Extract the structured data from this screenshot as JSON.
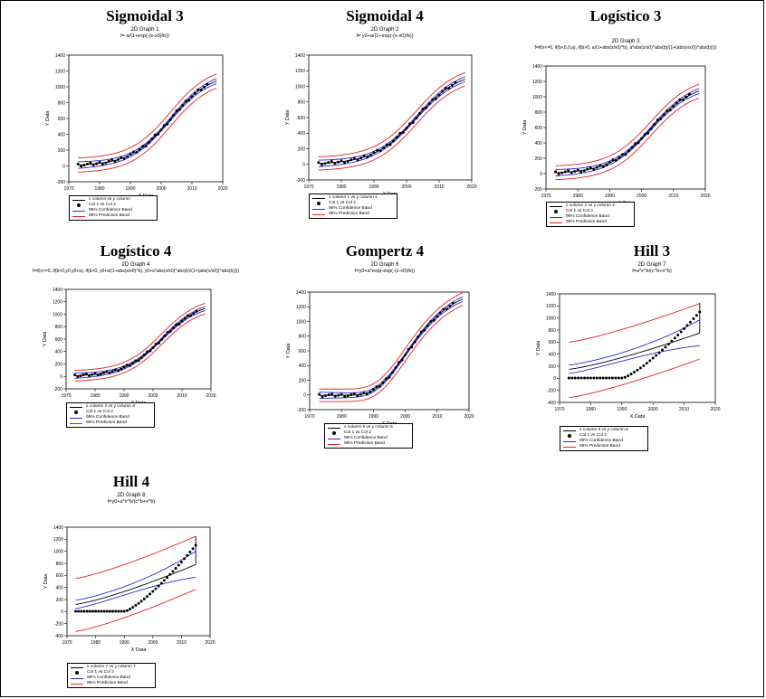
{
  "colors": {
    "fit": "#000000",
    "data": "#000000",
    "confidence": "#2b2bd8",
    "prediction": "#e82020"
  },
  "chart_data": [
    {
      "type": "scatter",
      "title": "Sigmoidal 3",
      "subtitle": "2D Graph 1",
      "equation": "f= a/(1+exp(-(x-x0)/b))",
      "xlabel": "X Data",
      "ylabel": "Y Data",
      "xlim": [
        1970,
        2020
      ],
      "ylim": [
        -200,
        1400
      ],
      "xticks": [
        "1970",
        "1980",
        "1990",
        "2000",
        "2010",
        "2020"
      ],
      "yticks": [
        "-200",
        "0",
        "200",
        "400",
        "600",
        "800",
        "1000",
        "1200",
        "1400"
      ],
      "model": {
        "kind": "sigmoid",
        "a": 1180,
        "x0": 2003,
        "b": 6.5,
        "fit_end": 2018
      },
      "bands": {
        "conf": 35,
        "pred": 90
      },
      "points": {
        "x_start": 1973,
        "x_end": 2015,
        "step": 1
      },
      "legend": [
        "x column vs y column",
        "Col 1 vs Col 2",
        "95% Confidence Band",
        "95% Prediction Band"
      ]
    },
    {
      "type": "scatter",
      "title": "Sigmoidal 4",
      "subtitle": "2D Graph 2",
      "equation": "f= y0+a/(1+exp(-(x-x0)/b))",
      "xlabel": "X Data",
      "ylabel": "Y Data",
      "xlim": [
        1970,
        2020
      ],
      "ylim": [
        -200,
        1400
      ],
      "xticks": [
        "1970",
        "1980",
        "1990",
        "2000",
        "2010",
        "2020"
      ],
      "yticks": [
        "-200",
        "0",
        "200",
        "400",
        "600",
        "800",
        "1000",
        "1200",
        "1400"
      ],
      "model": {
        "kind": "sigmoid",
        "a": 1200,
        "x0": 2003,
        "b": 6.5,
        "fit_end": 2018
      },
      "bands": {
        "conf": 35,
        "pred": 85
      },
      "points": {
        "x_start": 1973,
        "x_end": 2015,
        "step": 1
      },
      "legend": [
        "x column 1 vs y column 1",
        "Col 1 vs Col 2",
        "95% Confidence Band",
        "95% Prediction Band"
      ]
    },
    {
      "type": "scatter",
      "title": "Logístico 3",
      "subtitle": "2D Graph 3",
      "equation": "f=if(x<=0, if(b<0,0,a), if(b>0, a/(1+abs(x/x0)^b), a*abs(x/x0)^abs(b)/(1+(abs(x/x0))^abs(b))))",
      "xlabel": "X Data",
      "ylabel": "Y Data",
      "xlim": [
        1970,
        2020
      ],
      "ylim": [
        -200,
        1400
      ],
      "xticks": [
        "1970",
        "1980",
        "1990",
        "2000",
        "2010",
        "2020"
      ],
      "yticks": [
        "-200",
        "0",
        "200",
        "400",
        "600",
        "800",
        "1000",
        "1200",
        "1400"
      ],
      "model": {
        "kind": "sigmoid",
        "a": 1180,
        "x0": 2003,
        "b": 6.5,
        "fit_end": 2018
      },
      "bands": {
        "conf": 35,
        "pred": 90
      },
      "points": {
        "x_start": 1973,
        "x_end": 2015,
        "step": 1
      },
      "legend": [
        "x column 2 vs y column 2",
        "Col 1 vs Col 2",
        "95% Confidence Band",
        "95% Prediction Band"
      ]
    },
    {
      "type": "scatter",
      "title": "Logístico 4",
      "subtitle": "2D Graph 4",
      "equation": "f=if(x<=0, if(b<0,y0,y0+a), if(b>0, y0+a/(1+abs(x/x0)^b), y0+a*abs(x/x0)^abs(b)/(1+(abs(x/x0))^abs(b))))",
      "xlabel": "X Data",
      "ylabel": "Y Data",
      "xlim": [
        1970,
        2020
      ],
      "ylim": [
        -200,
        1400
      ],
      "xticks": [
        "1970",
        "1980",
        "1990",
        "2000",
        "2010",
        "2020"
      ],
      "yticks": [
        "-200",
        "0",
        "200",
        "400",
        "600",
        "800",
        "1000",
        "1200",
        "1400"
      ],
      "model": {
        "kind": "sigmoid",
        "a": 1200,
        "x0": 2003,
        "b": 6.5,
        "fit_end": 2018
      },
      "bands": {
        "conf": 35,
        "pred": 85
      },
      "points": {
        "x_start": 1973,
        "x_end": 2015,
        "step": 1
      },
      "legend": [
        "x column 3 vs y column 3",
        "Col 1 vs Col 2",
        "95% Confidence Band",
        "95% Prediction Band"
      ]
    },
    {
      "type": "scatter",
      "title": "Gompertz 4",
      "subtitle": "2D Graph 6",
      "equation": "f=y0+a*exp(-exp(-(x-x0)/b))",
      "xlabel": "X Data",
      "ylabel": "Y Data",
      "xlim": [
        1970,
        2020
      ],
      "ylim": [
        -200,
        1400
      ],
      "xticks": [
        "1970",
        "1980",
        "1990",
        "2000",
        "2010",
        "2020"
      ],
      "yticks": [
        "-200",
        "0",
        "200",
        "400",
        "600",
        "800",
        "1000",
        "1200",
        "1400"
      ],
      "model": {
        "kind": "gompertz",
        "a": 1500,
        "x0": 2000,
        "b": 9,
        "fit_end": 2018
      },
      "bands": {
        "conf": 35,
        "pred": 85
      },
      "points": {
        "x_start": 1973,
        "x_end": 2015,
        "step": 1
      },
      "legend": [
        "x column 5 vs y column 5",
        "Col 1 vs Col 2",
        "95% Confidence Band",
        "95% Prediction Band"
      ]
    },
    {
      "type": "scatter",
      "title": "Hill 3",
      "subtitle": "2D Graph 7",
      "equation": "f=a*x^b/(c^b+x^b)",
      "xlabel": "X Data",
      "ylabel": "Y Data",
      "xlim": [
        1970,
        2020
      ],
      "ylim": [
        -400,
        1400
      ],
      "xticks": [
        "1970",
        "1980",
        "1990",
        "2000",
        "2010",
        "2020"
      ],
      "yticks": [
        "-400",
        "-200",
        "0",
        "200",
        "400",
        "600",
        "800",
        "1000",
        "1200",
        "1400"
      ],
      "model": {
        "kind": "hill",
        "y_start": 150,
        "y_end": 750,
        "fit_end": 2015
      },
      "bands": {
        "conf_lo": 70,
        "conf_hi": 250,
        "pred": 450
      },
      "points": {
        "x_start": 1973,
        "x_end": 2015,
        "step": 1
      },
      "legend": [
        "x column 6 vs y column 6",
        "Col 1 vs Col 2",
        "95% Confidence Band",
        "95% Prediction Band"
      ]
    },
    {
      "type": "scatter",
      "title": "Hill 4",
      "subtitle": "2D Graph 8",
      "equation": "f=y0+a*x^b/(c^b+x^b)",
      "xlabel": "X Data",
      "ylabel": "Y Data",
      "xlim": [
        1970,
        2020
      ],
      "ylim": [
        -400,
        1400
      ],
      "xticks": [
        "1970",
        "1980",
        "1990",
        "2000",
        "2010",
        "2020"
      ],
      "yticks": [
        "-400",
        "-200",
        "0",
        "200",
        "400",
        "600",
        "800",
        "1000",
        "1200",
        "1400"
      ],
      "model": {
        "kind": "hill",
        "y_start": 120,
        "y_end": 780,
        "fit_end": 2015
      },
      "bands": {
        "conf_lo": 70,
        "conf_hi": 250,
        "pred": 430
      },
      "points": {
        "x_start": 1973,
        "x_end": 2015,
        "step": 1
      },
      "legend": [
        "x column 7 vs y column 7",
        "Col 1 vs Col 2",
        "95% Confidence Band",
        "95% Prediction Band"
      ]
    }
  ]
}
